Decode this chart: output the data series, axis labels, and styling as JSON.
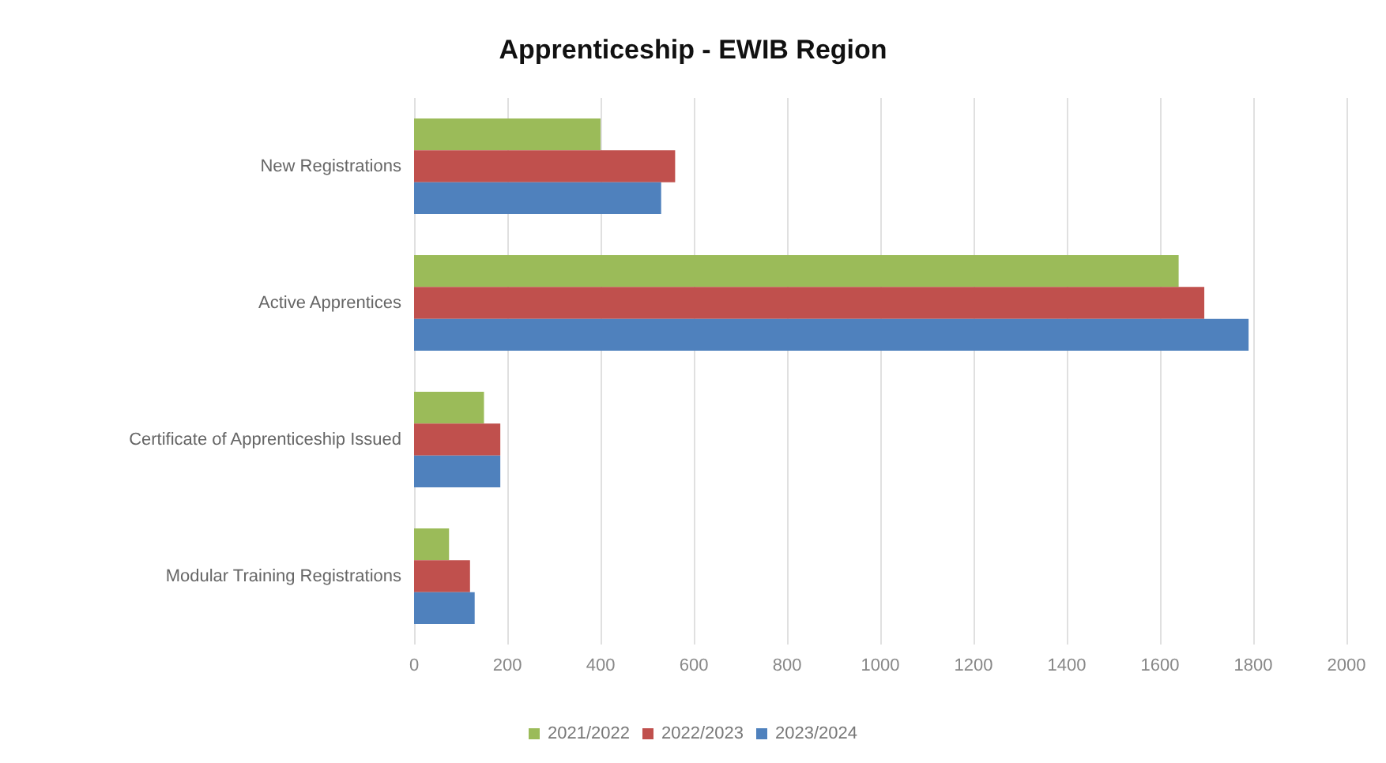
{
  "chart_data": {
    "type": "bar",
    "orientation": "horizontal",
    "title": "Apprenticeship - EWIB Region",
    "categories": [
      "New Registrations",
      "Active Apprentices",
      "Certificate of Apprenticeship Issued",
      "Modular Training Registrations"
    ],
    "series": [
      {
        "name": "2021/2022",
        "color": "#9bbb59",
        "values": [
          400,
          1640,
          150,
          75
        ]
      },
      {
        "name": "2022/2023",
        "color": "#c0504d",
        "values": [
          560,
          1695,
          185,
          120
        ]
      },
      {
        "name": "2023/2024",
        "color": "#4f81bd",
        "values": [
          530,
          1790,
          185,
          130
        ]
      }
    ],
    "xlim": [
      0,
      2000
    ],
    "xticks": [
      0,
      200,
      400,
      600,
      800,
      1000,
      1200,
      1400,
      1600,
      1800,
      2000
    ],
    "grid": "x",
    "legend": "bottom"
  }
}
